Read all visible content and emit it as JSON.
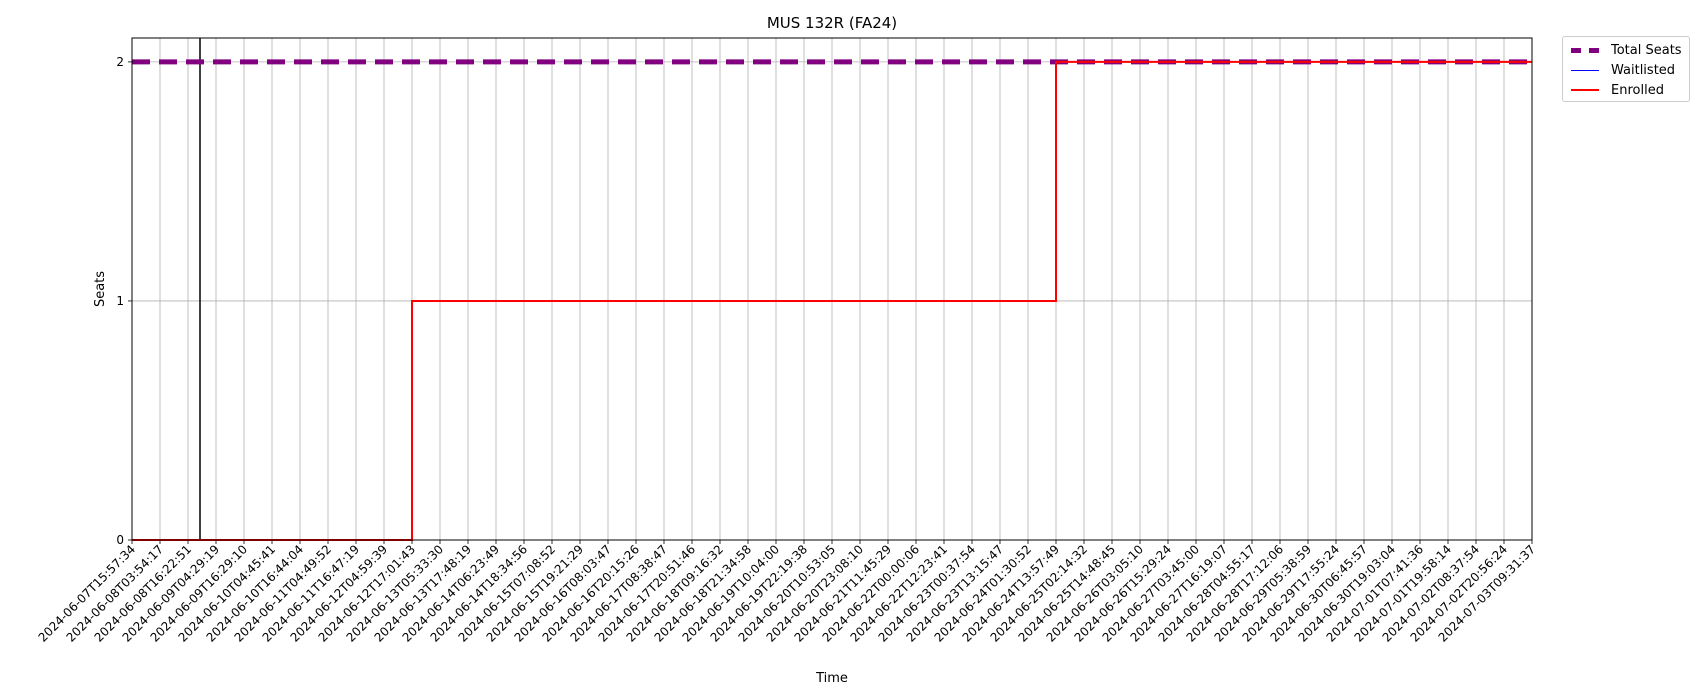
{
  "chart_data": {
    "type": "line",
    "title": "MUS 132R (FA24)",
    "xlabel": "Time",
    "ylabel": "Seats",
    "ylim": [
      0,
      2.1
    ],
    "yticks": [
      0,
      1,
      2
    ],
    "grid": true,
    "legend_position": "outside-top-right",
    "x": [
      "2024-06-07T15:57:34",
      "2024-06-08T03:54:17",
      "2024-06-08T16:22:51",
      "2024-06-09T04:29:19",
      "2024-06-09T16:29:10",
      "2024-06-10T04:45:41",
      "2024-06-10T16:44:04",
      "2024-06-11T04:49:52",
      "2024-06-11T16:47:19",
      "2024-06-12T04:59:39",
      "2024-06-12T17:01:43",
      "2024-06-13T05:33:30",
      "2024-06-13T17:48:19",
      "2024-06-14T06:23:49",
      "2024-06-14T18:34:56",
      "2024-06-15T07:08:52",
      "2024-06-15T19:21:29",
      "2024-06-16T08:03:47",
      "2024-06-16T20:15:26",
      "2024-06-17T08:38:47",
      "2024-06-17T20:51:46",
      "2024-06-18T09:16:32",
      "2024-06-18T21:34:58",
      "2024-06-19T10:04:00",
      "2024-06-19T22:19:38",
      "2024-06-20T10:53:05",
      "2024-06-20T23:08:10",
      "2024-06-21T11:45:29",
      "2024-06-22T00:00:06",
      "2024-06-22T12:23:41",
      "2024-06-23T00:37:54",
      "2024-06-23T13:15:47",
      "2024-06-24T01:30:52",
      "2024-06-24T13:57:49",
      "2024-06-25T02:14:32",
      "2024-06-25T14:48:45",
      "2024-06-26T03:05:10",
      "2024-06-26T15:29:24",
      "2024-06-27T03:45:00",
      "2024-06-27T16:19:07",
      "2024-06-28T04:55:17",
      "2024-06-28T17:12:06",
      "2024-06-29T05:38:59",
      "2024-06-29T17:55:24",
      "2024-06-30T06:45:57",
      "2024-06-30T19:03:04",
      "2024-07-01T07:41:36",
      "2024-07-01T19:58:14",
      "2024-07-02T08:37:54",
      "2024-07-02T20:56:24",
      "2024-07-03T09:31:37"
    ],
    "series": [
      {
        "name": "Total Seats",
        "color": "#800080",
        "style": "dashed",
        "values": [
          2,
          2,
          2,
          2,
          2,
          2,
          2,
          2,
          2,
          2,
          2,
          2,
          2,
          2,
          2,
          2,
          2,
          2,
          2,
          2,
          2,
          2,
          2,
          2,
          2,
          2,
          2,
          2,
          2,
          2,
          2,
          2,
          2,
          2,
          2,
          2,
          2,
          2,
          2,
          2,
          2,
          2,
          2,
          2,
          2,
          2,
          2,
          2,
          2,
          2,
          2
        ]
      },
      {
        "name": "Waitlisted",
        "color": "#0000ff",
        "style": "solid",
        "values": [
          0,
          0,
          0,
          0,
          0,
          0,
          0,
          0,
          0,
          0,
          0,
          0,
          0,
          0,
          0,
          0,
          0,
          0,
          0,
          0,
          0,
          0,
          0,
          0,
          0,
          0,
          0,
          0,
          0,
          0,
          0,
          0,
          0,
          0,
          0,
          0,
          0,
          0,
          0,
          0,
          0,
          0,
          0,
          0,
          0,
          0,
          0,
          0,
          0,
          0,
          0
        ]
      },
      {
        "name": "Enrolled",
        "color": "#ff0000",
        "style": "step",
        "values": [
          0,
          0,
          0,
          0,
          0,
          0,
          0,
          0,
          0,
          0,
          1,
          1,
          1,
          1,
          1,
          1,
          1,
          1,
          1,
          1,
          1,
          1,
          1,
          1,
          1,
          1,
          1,
          1,
          1,
          1,
          1,
          1,
          1,
          2,
          2,
          2,
          2,
          2,
          2,
          2,
          2,
          2,
          2,
          2,
          2,
          2,
          2,
          2,
          2,
          2,
          2
        ]
      }
    ],
    "vertical_marker_x": "2024-06-08T16:22:51"
  }
}
